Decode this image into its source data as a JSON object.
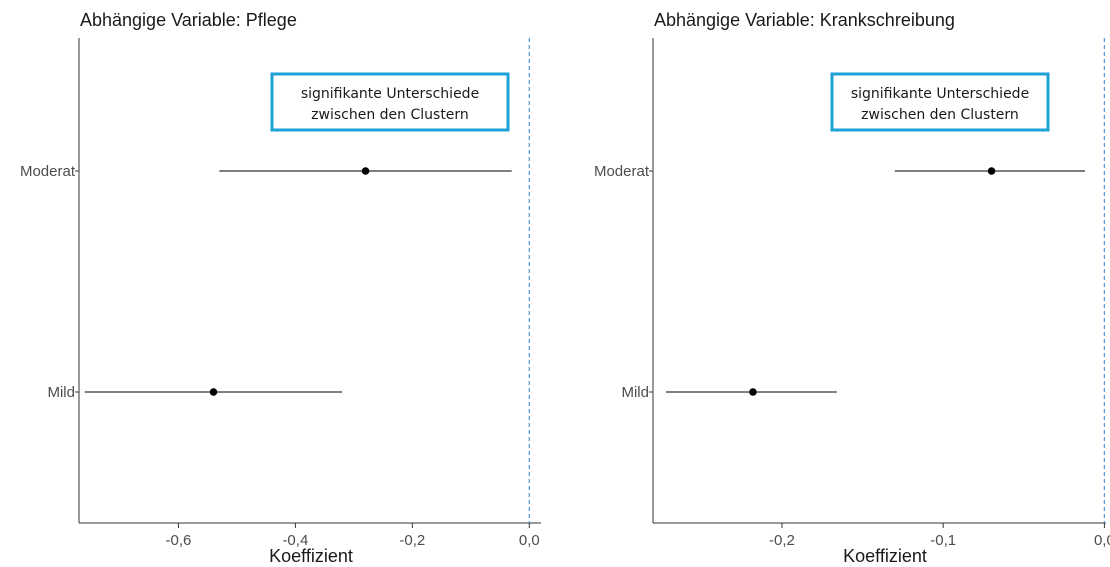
{
  "colors": {
    "reference_line": "#5b9bd5",
    "annotation_border": "#1ba1d6",
    "point": "#000000",
    "error_bar": "#333333",
    "axis": "#333333"
  },
  "chart_data": [
    {
      "type": "scatter",
      "subtype": "coefficient-plot",
      "title": "Abhängige Variable: Pflege",
      "xlabel": "Koeffizient",
      "ylabel": "",
      "xlim": [
        -0.77,
        0.02
      ],
      "xticks": [
        -0.6,
        -0.4,
        -0.2,
        0.0
      ],
      "xtick_labels": [
        "-0,6",
        "-0,4",
        "-0,2",
        "0,0"
      ],
      "reference_x": 0.0,
      "grid": false,
      "categories": [
        "Moderat",
        "Mild"
      ],
      "estimates": [
        -0.28,
        -0.54
      ],
      "ci_low": [
        -0.53,
        -0.76
      ],
      "ci_high": [
        -0.03,
        -0.32
      ],
      "annotation": [
        "signifikante Unterschiede",
        "zwischen den Clustern"
      ]
    },
    {
      "type": "scatter",
      "subtype": "coefficient-plot",
      "title": "Abhängige Variable: Krankschreibung",
      "xlabel": "Koeffizient",
      "ylabel": "",
      "xlim": [
        -0.28,
        0.001
      ],
      "xticks": [
        -0.2,
        -0.1,
        0.0
      ],
      "xtick_labels": [
        "-0,2",
        "-0,1",
        "0,0"
      ],
      "reference_x": 0.0,
      "grid": false,
      "categories": [
        "Moderat",
        "Mild"
      ],
      "estimates": [
        -0.07,
        -0.218
      ],
      "ci_low": [
        -0.13,
        -0.272
      ],
      "ci_high": [
        -0.012,
        -0.166
      ],
      "annotation": [
        "signifikante Unterschiede",
        "zwischen den Clustern"
      ]
    }
  ]
}
